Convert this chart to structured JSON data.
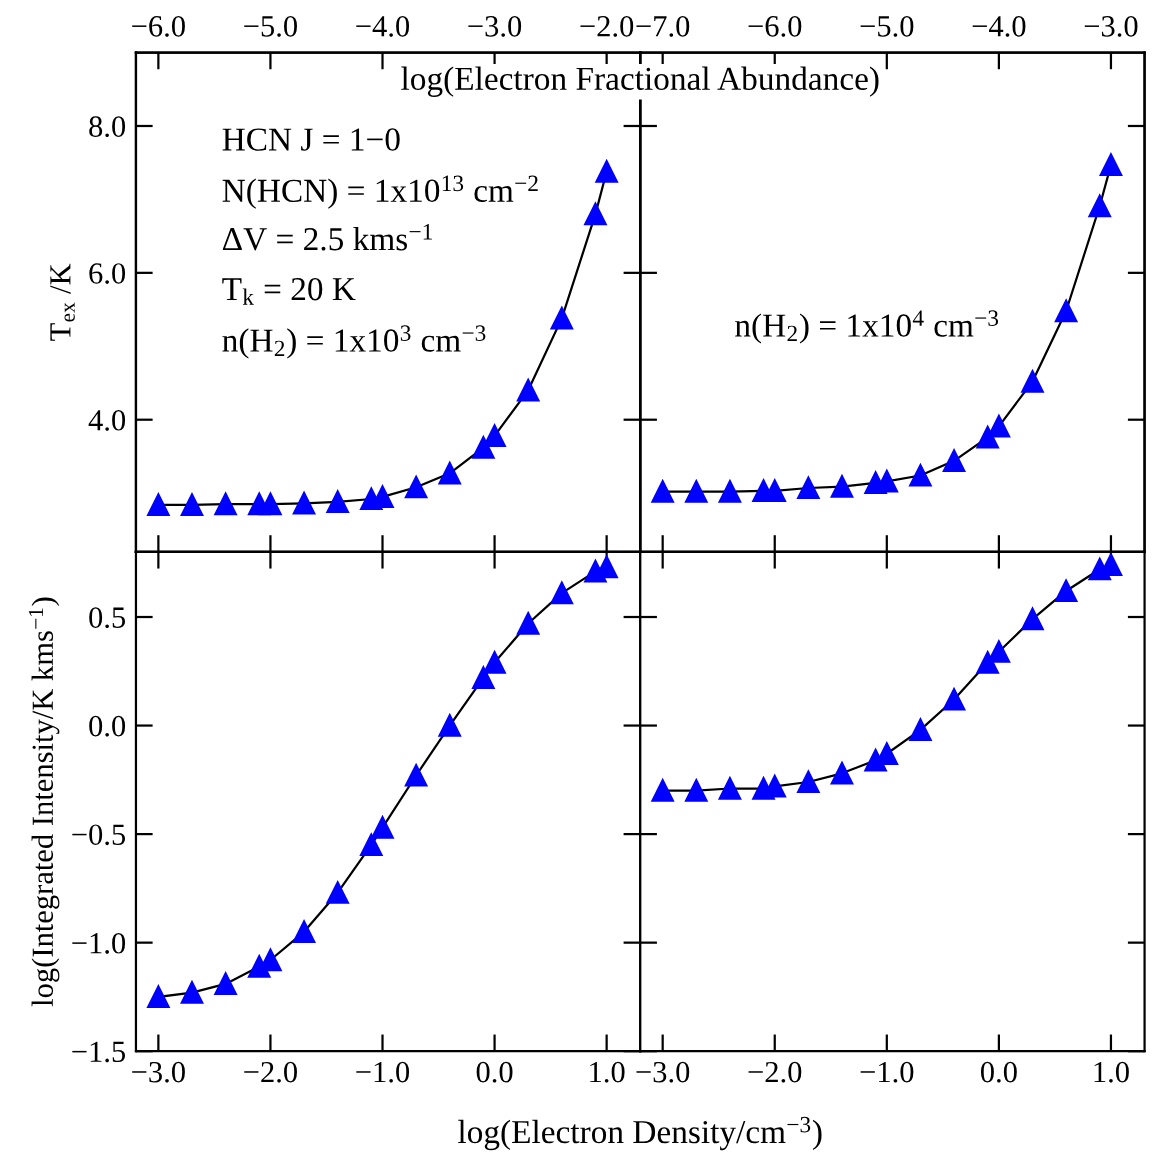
{
  "chart_data": [
    {
      "type": "line",
      "ylabel": "T$_{ex}$ /K",
      "x2label": "log(Electron Fractional Abundance)",
      "marker": "triangle",
      "tick_labels": "y",
      "annotations": [
        "HCN J = 1−0",
        "N(HCN) = 1x10$^{13}$ cm$^{−2}$",
        "ΔV = 2.5 kms$^{−1}$",
        "T$_{k}$ = 20 K",
        "n(H$_{2}$) = 1x10$^{3}$ cm$^{−3}$"
      ],
      "x": [
        -3.0,
        -2.7,
        -2.4,
        -2.1,
        -2.0,
        -1.7,
        -1.4,
        -1.1,
        -1.0,
        -0.7,
        -0.4,
        -0.1,
        0.0,
        0.3,
        0.6,
        0.9,
        1.0
      ],
      "series": [
        {
          "color": "#0000ff",
          "values": [
            2.84,
            2.84,
            2.85,
            2.85,
            2.85,
            2.86,
            2.88,
            2.92,
            2.95,
            3.08,
            3.27,
            3.62,
            3.78,
            4.4,
            5.38,
            6.8,
            7.38
          ]
        }
      ],
      "xlim": [
        -3.2,
        1.3
      ],
      "xticks": [
        {
          "value": -3,
          "label": null
        },
        {
          "value": -2,
          "label": null
        },
        {
          "value": -1,
          "label": null
        },
        {
          "value": 0,
          "label": null
        },
        {
          "value": 1,
          "label": null
        }
      ],
      "x2lim": [
        -6.2,
        -1.7
      ],
      "x2ticks": [
        {
          "value": -6,
          "label": "−6.0"
        },
        {
          "value": -5,
          "label": "−5.0"
        },
        {
          "value": -4,
          "label": "−4.0"
        },
        {
          "value": -3,
          "label": "−3.0"
        },
        {
          "value": -2,
          "label": "−2.0"
        }
      ],
      "ylim": [
        2.2,
        9.0
      ],
      "yticks": [
        {
          "value": 4,
          "label": "4.0"
        },
        {
          "value": 6,
          "label": "6.0"
        },
        {
          "value": 8,
          "label": "8.0"
        }
      ]
    },
    {
      "type": "line",
      "marker": "triangle",
      "tick_labels": false,
      "annotations": [
        "n(H$_{2}$) = 1x10$^{4}$ cm$^{−3}$"
      ],
      "x": [
        -3.0,
        -2.7,
        -2.4,
        -2.1,
        -2.0,
        -1.7,
        -1.4,
        -1.1,
        -1.0,
        -0.7,
        -0.4,
        -0.1,
        0.0,
        0.3,
        0.6,
        0.9,
        1.0
      ],
      "series": [
        {
          "color": "#0000ff",
          "values": [
            3.02,
            3.02,
            3.02,
            3.03,
            3.03,
            3.07,
            3.09,
            3.14,
            3.16,
            3.24,
            3.44,
            3.76,
            3.91,
            4.52,
            5.48,
            6.91,
            7.47
          ]
        }
      ],
      "xlim": [
        -3.2,
        1.3
      ],
      "xticks": [
        {
          "value": -3,
          "label": null
        },
        {
          "value": -2,
          "label": null
        },
        {
          "value": -1,
          "label": null
        },
        {
          "value": 0,
          "label": null
        },
        {
          "value": 1,
          "label": null
        }
      ],
      "x2lim": [
        -7.2,
        -2.7
      ],
      "x2ticks": [
        {
          "value": -7,
          "label": "−7.0"
        },
        {
          "value": -6,
          "label": "−6.0"
        },
        {
          "value": -5,
          "label": "−5.0"
        },
        {
          "value": -4,
          "label": "−4.0"
        },
        {
          "value": -3,
          "label": "−3.0"
        }
      ],
      "ylim": [
        2.2,
        9.0
      ],
      "yticks": [
        {
          "value": 4,
          "label": null
        },
        {
          "value": 6,
          "label": null
        },
        {
          "value": 8,
          "label": null
        }
      ]
    },
    {
      "type": "line",
      "ylabel": "log(Integrated Intensity/K kms$^{−1}$)",
      "xlabel": "log(Electron Density/cm$^{−3}$)",
      "marker": "triangle",
      "x": [
        -3.0,
        -2.7,
        -2.4,
        -2.1,
        -2.0,
        -1.7,
        -1.4,
        -1.1,
        -1.0,
        -0.7,
        -0.4,
        -0.1,
        0.0,
        0.3,
        0.6,
        0.9,
        1.0
      ],
      "series": [
        {
          "color": "#0000ff",
          "values": [
            -1.25,
            -1.23,
            -1.19,
            -1.11,
            -1.08,
            -0.95,
            -0.77,
            -0.55,
            -0.47,
            -0.23,
            0.0,
            0.22,
            0.29,
            0.47,
            0.61,
            0.71,
            0.73
          ]
        }
      ],
      "xlim": [
        -3.2,
        1.3
      ],
      "xticks": [
        {
          "value": -3,
          "label": "−3.0"
        },
        {
          "value": -2,
          "label": "−2.0"
        },
        {
          "value": -1,
          "label": "−1.0"
        },
        {
          "value": 0,
          "label": "0.0"
        },
        {
          "value": 1,
          "label": "1.0"
        }
      ],
      "ylim": [
        -1.5,
        0.8
      ],
      "yticks": [
        {
          "value": -1.5,
          "label": "−1.5"
        },
        {
          "value": -1,
          "label": "−1.0"
        },
        {
          "value": -0.5,
          "label": "−0.5"
        },
        {
          "value": 0,
          "label": "0.0"
        },
        {
          "value": 0.5,
          "label": "0.5"
        }
      ]
    },
    {
      "type": "line",
      "marker": "triangle",
      "tick_labels": "x",
      "x": [
        -3.0,
        -2.7,
        -2.4,
        -2.1,
        -2.0,
        -1.7,
        -1.4,
        -1.1,
        -1.0,
        -0.7,
        -0.4,
        -0.1,
        0.0,
        0.3,
        0.6,
        0.9,
        1.0
      ],
      "series": [
        {
          "color": "#0000ff",
          "values": [
            -0.3,
            -0.3,
            -0.29,
            -0.29,
            -0.28,
            -0.26,
            -0.22,
            -0.16,
            -0.13,
            -0.02,
            0.12,
            0.29,
            0.34,
            0.49,
            0.62,
            0.72,
            0.74
          ]
        }
      ],
      "xlim": [
        -3.2,
        1.3
      ],
      "xticks": [
        {
          "value": -3,
          "label": "−3.0"
        },
        {
          "value": -2,
          "label": "−2.0"
        },
        {
          "value": -1,
          "label": "−1.0"
        },
        {
          "value": 0,
          "label": "0.0"
        },
        {
          "value": 1,
          "label": "1.0"
        }
      ],
      "ylim": [
        -1.5,
        0.8
      ],
      "yticks": [
        {
          "value": -1.5,
          "label": null
        },
        {
          "value": -1,
          "label": null
        },
        {
          "value": -0.5,
          "label": null
        },
        {
          "value": 0,
          "label": null
        },
        {
          "value": 0.5,
          "label": null
        }
      ]
    }
  ]
}
